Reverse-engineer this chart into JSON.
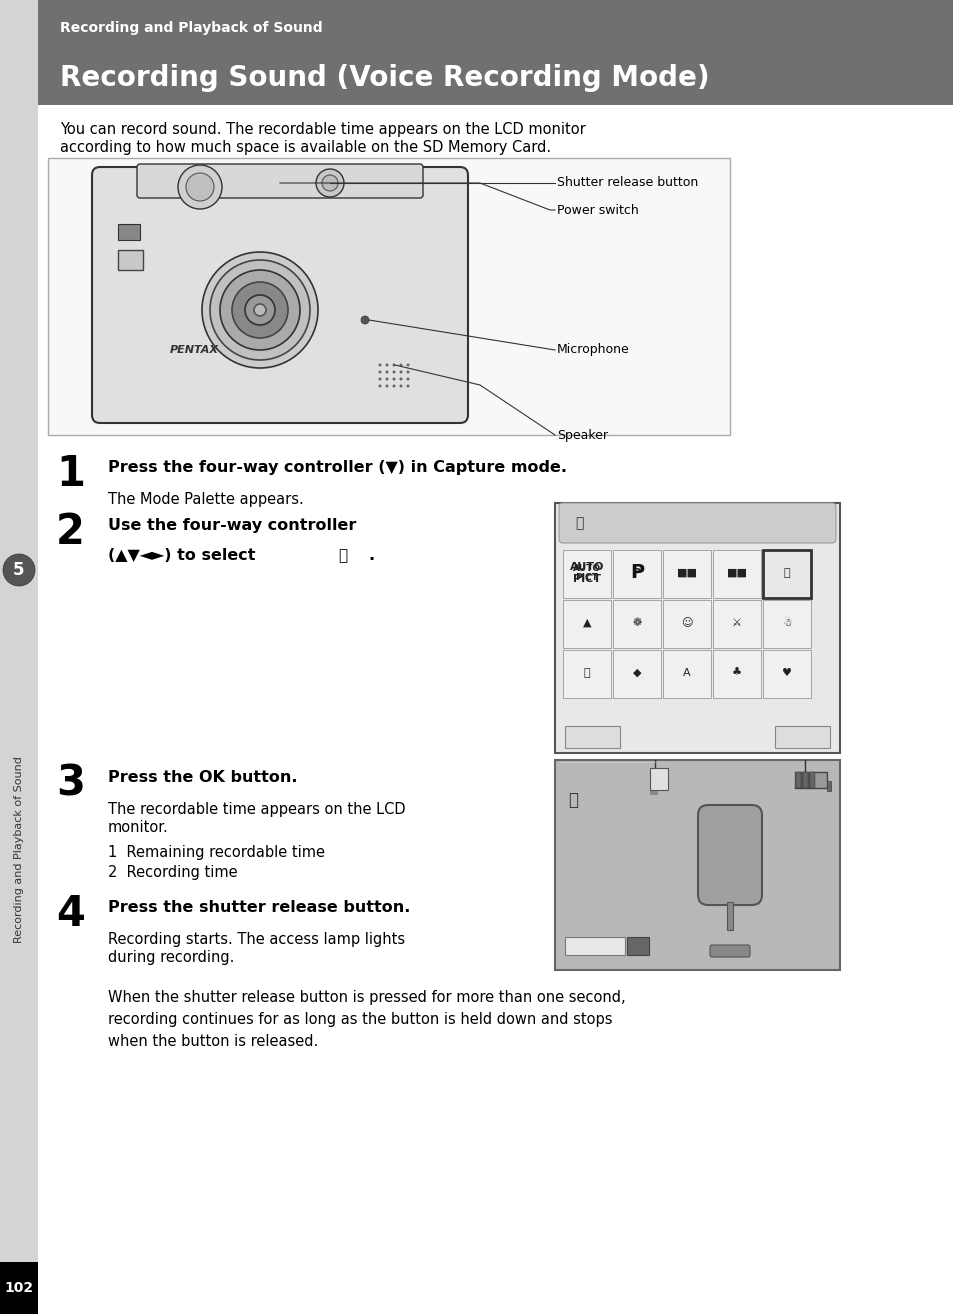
{
  "page_bg": "#ffffff",
  "header_bg": "#707070",
  "header_subtitle": "Recording and Playback of Sound",
  "header_title": "Recording Sound (Voice Recording Mode)",
  "header_subtitle_color": "#ffffff",
  "header_title_color": "#ffffff",
  "left_tab_text": "Recording and Playback of Sound",
  "page_number": "102",
  "intro_text_1": "You can record sound. The recordable time appears on the LCD monitor",
  "intro_text_2": "according to how much space is available on the SD Memory Card.",
  "callout_labels": [
    "Shutter release button",
    "Power switch",
    "Microphone",
    "Speaker"
  ],
  "step1_bold": "Press the four-way controller (▼) in Capture mode.",
  "step1_sub": "The Mode Palette appears.",
  "step2_line1": "Use the four-way controller",
  "step2_line2": "(▲▼◄►) to select",
  "step3_bold": "Press the OK button.",
  "step3_sub1_line1": "The recordable time appears on the LCD",
  "step3_sub1_line2": "monitor.",
  "step3_sub2": "1  Remaining recordable time",
  "step3_sub3": "2  Recording time",
  "step4_bold": "Press the shutter release button.",
  "step4_sub1_line1": "Recording starts. The access lamp lights",
  "step4_sub1_line2": "during recording.",
  "step4_sub2": "When the shutter release button is pressed for more than one second,\nrecording continues for as long as the button is held down and stops\nwhen the button is released."
}
